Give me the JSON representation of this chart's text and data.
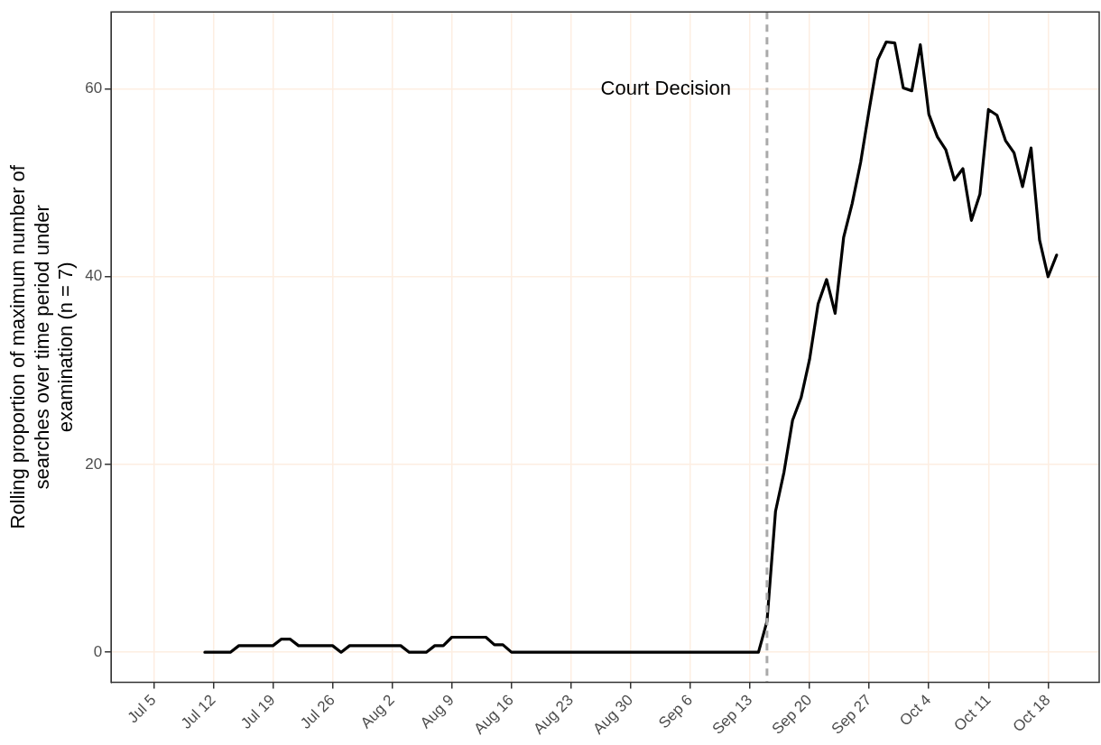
{
  "chart_data": {
    "type": "line",
    "ylabel": "Rolling proportion of maximum number of searches over time period under examination (n = 7)",
    "x": [
      "--07-11",
      "--07-12",
      "--07-13",
      "--07-14",
      "--07-15",
      "--07-16",
      "--07-17",
      "--07-18",
      "--07-19",
      "--07-20",
      "--07-21",
      "--07-22",
      "--07-23",
      "--07-24",
      "--07-25",
      "--07-26",
      "--07-27",
      "--07-28",
      "--07-29",
      "--07-30",
      "--07-31",
      "--08-01",
      "--08-02",
      "--08-03",
      "--08-04",
      "--08-05",
      "--08-06",
      "--08-07",
      "--08-08",
      "--08-09",
      "--08-10",
      "--08-11",
      "--08-12",
      "--08-13",
      "--08-14",
      "--08-15",
      "--08-16",
      "--08-17",
      "--08-18",
      "--08-19",
      "--08-20",
      "--08-21",
      "--08-22",
      "--08-23",
      "--08-24",
      "--08-25",
      "--08-26",
      "--08-27",
      "--08-28",
      "--08-29",
      "--08-30",
      "--08-31",
      "--09-01",
      "--09-02",
      "--09-03",
      "--09-04",
      "--09-05",
      "--09-06",
      "--09-07",
      "--09-08",
      "--09-09",
      "--09-10",
      "--09-11",
      "--09-12",
      "--09-13",
      "--09-14",
      "--09-15",
      "--09-16",
      "--09-17",
      "--09-18",
      "--09-19",
      "--09-20",
      "--09-21",
      "--09-22",
      "--09-23",
      "--09-24",
      "--09-25",
      "--09-26",
      "--09-27",
      "--09-28",
      "--09-29",
      "--09-30",
      "--10-01",
      "--10-02",
      "--10-03",
      "--10-04",
      "--10-05",
      "--10-06",
      "--10-07",
      "--10-08",
      "--10-09",
      "--10-10",
      "--10-11",
      "--10-12",
      "--10-13",
      "--10-14",
      "--10-15",
      "--10-16",
      "--10-17",
      "--10-18",
      "--10-19"
    ],
    "series": [
      {
        "color": "#000000",
        "values": [
          0,
          0,
          0,
          0,
          0.7,
          0.7,
          0.7,
          0.7,
          0.7,
          1.4,
          1.4,
          0.7,
          0.7,
          0.7,
          0.7,
          0.7,
          0,
          0.7,
          0.7,
          0.7,
          0.7,
          0.7,
          0.7,
          0.7,
          0,
          0,
          0,
          0.7,
          0.7,
          1.6,
          1.6,
          1.6,
          1.6,
          1.6,
          0.8,
          0.8,
          0,
          0,
          0,
          0,
          0,
          0,
          0,
          0,
          0,
          0,
          0,
          0,
          0,
          0,
          0,
          0,
          0,
          0,
          0,
          0,
          0,
          0,
          0,
          0,
          0,
          0,
          0,
          0,
          0,
          0,
          3.3,
          15.0,
          19.2,
          24.7,
          27.1,
          31.2,
          37.1,
          39.7,
          36.1,
          44.2,
          47.8,
          52.2,
          57.8,
          63.1,
          65.0,
          64.9,
          60.1,
          59.8,
          64.7,
          57.3,
          54.9,
          53.5,
          50.3,
          51.5,
          46.0,
          48.8,
          57.8,
          57.2,
          54.5,
          53.2,
          49.6,
          53.7,
          43.9,
          40.0,
          42.3
        ]
      }
    ],
    "xlim": [
      "--06-30",
      "--10-24"
    ],
    "xticks": [
      {
        "value": "--07-05",
        "label": "Jul 5"
      },
      {
        "value": "--07-12",
        "label": "Jul 12"
      },
      {
        "value": "--07-19",
        "label": "Jul 19"
      },
      {
        "value": "--07-26",
        "label": "Jul 26"
      },
      {
        "value": "--08-02",
        "label": "Aug 2"
      },
      {
        "value": "--08-09",
        "label": "Aug 9"
      },
      {
        "value": "--08-16",
        "label": "Aug 16"
      },
      {
        "value": "--08-23",
        "label": "Aug 23"
      },
      {
        "value": "--08-30",
        "label": "Aug 30"
      },
      {
        "value": "--09-06",
        "label": "Sep 6"
      },
      {
        "value": "--09-13",
        "label": "Sep 13"
      },
      {
        "value": "--09-20",
        "label": "Sep 20"
      },
      {
        "value": "--09-27",
        "label": "Sep 27"
      },
      {
        "value": "--10-04",
        "label": "Oct 4"
      },
      {
        "value": "--10-11",
        "label": "Oct 11"
      },
      {
        "value": "--10-18",
        "label": "Oct 18"
      }
    ],
    "ylim": [
      -3.2,
      68.2
    ],
    "yticks": [
      0,
      20,
      40,
      60
    ],
    "ref_lines": [
      {
        "axis": "x",
        "value": "--09-15",
        "label": "Court Decision",
        "color": "#aaaaaa",
        "line_style": "dashed"
      }
    ],
    "grid": true,
    "line_style": "solid",
    "marker": "none"
  }
}
